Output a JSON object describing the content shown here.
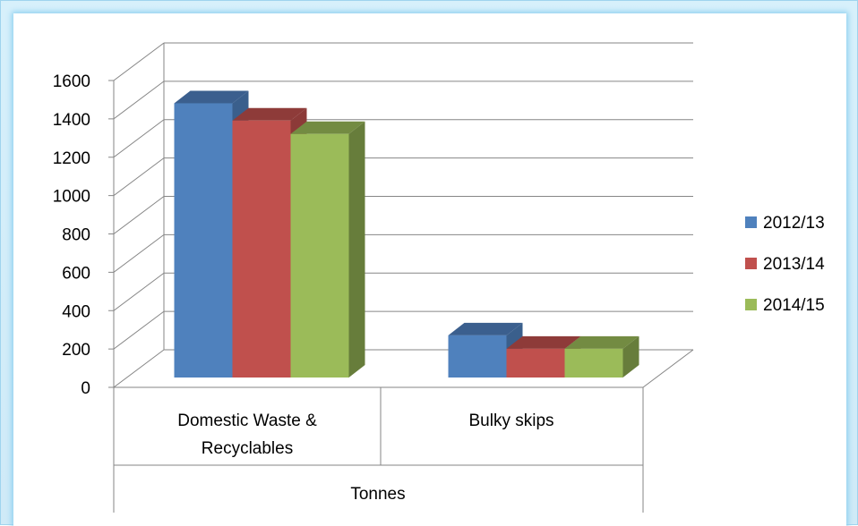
{
  "chart_data": {
    "type": "bar",
    "title": "",
    "ylim": [
      0,
      1600
    ],
    "yticks": [
      0,
      200,
      400,
      600,
      800,
      1000,
      1200,
      1400,
      1600
    ],
    "categories": [
      "Domestic Waste & Recyclables",
      "Bulky skips"
    ],
    "category_lines": [
      [
        "Domestic Waste &",
        "Recyclables"
      ],
      [
        "Bulky skips"
      ]
    ],
    "group_label": "Tonnes",
    "series": [
      {
        "name": "2012/13",
        "values": [
          1430,
          220
        ],
        "color": "#4f81bd",
        "top": "#3b5f8e",
        "side": "#3a5f8c"
      },
      {
        "name": "2013/14",
        "values": [
          1340,
          150
        ],
        "color": "#c0504d",
        "top": "#8e3b39",
        "side": "#8c3a38"
      },
      {
        "name": "2014/15",
        "values": [
          1270,
          150
        ],
        "color": "#9bbb59",
        "top": "#738b42",
        "side": "#677d3b"
      }
    ],
    "legend_position": "right",
    "grid": true
  }
}
